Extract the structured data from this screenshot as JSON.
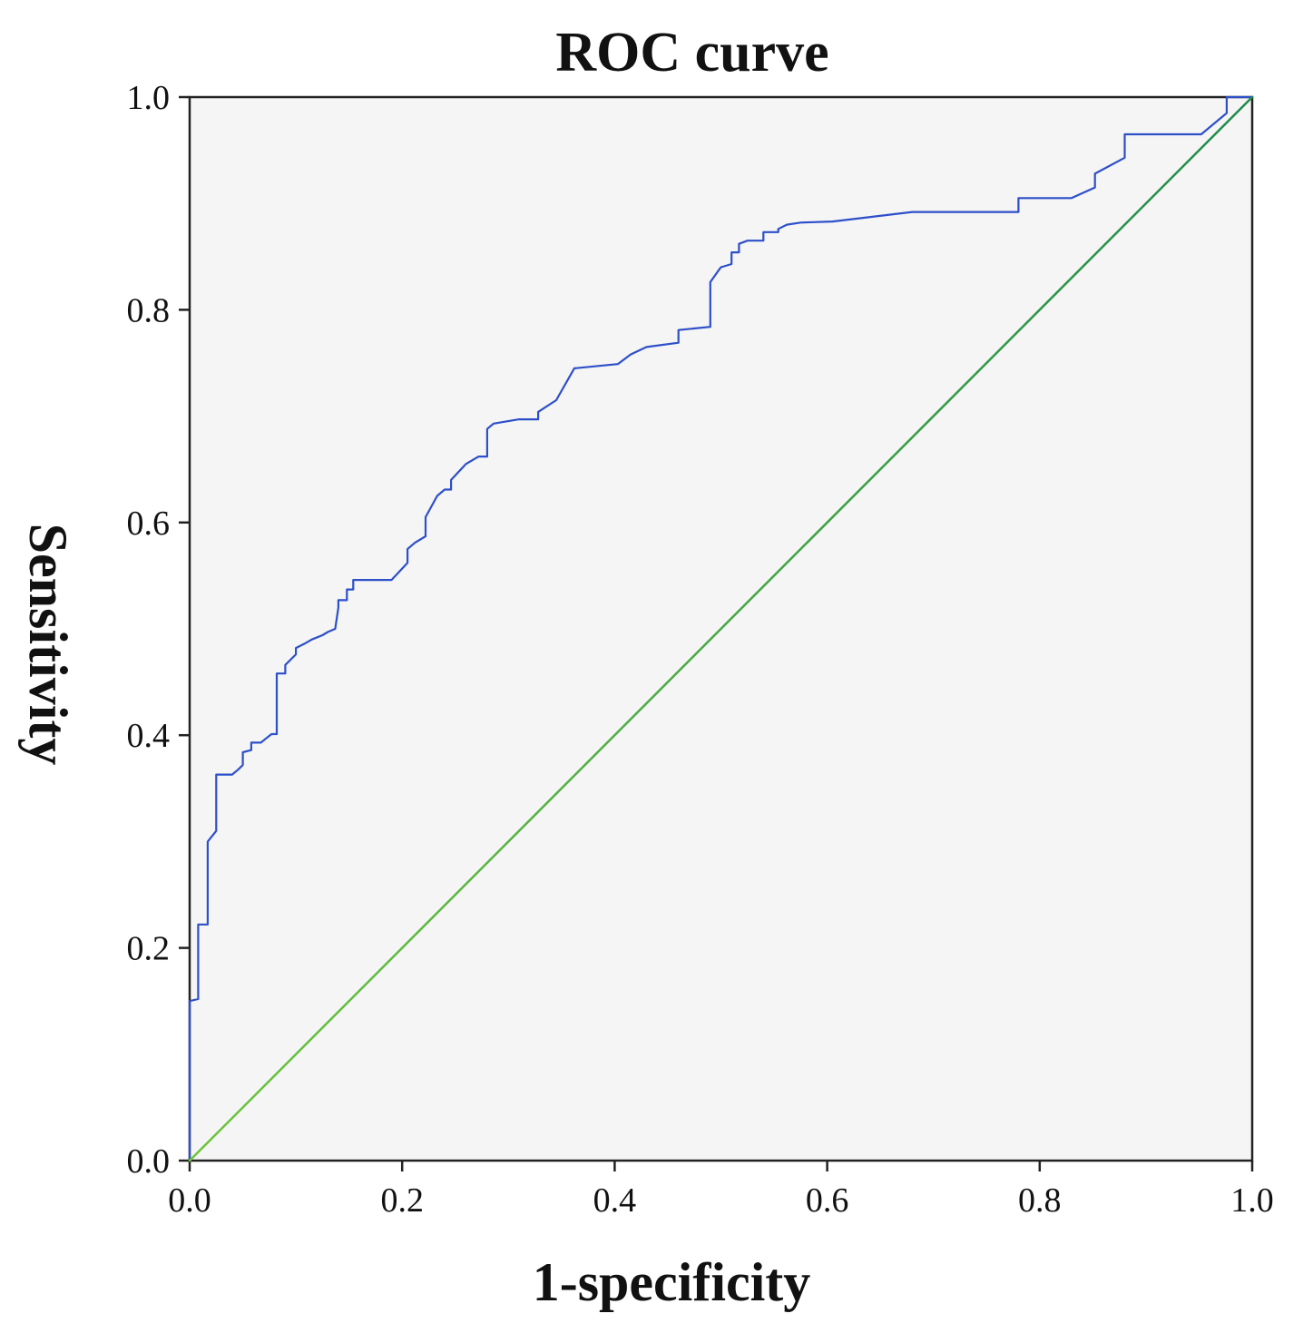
{
  "chart_data": {
    "type": "line",
    "title": "ROC curve",
    "xlabel": "1-specificity",
    "ylabel": "Sensitivity",
    "xlim": [
      0,
      1
    ],
    "ylim": [
      0,
      1
    ],
    "x_ticks": [
      "0.0",
      "0.2",
      "0.4",
      "0.6",
      "0.8",
      "1.0"
    ],
    "y_ticks": [
      "0.0",
      "0.2",
      "0.4",
      "0.6",
      "0.8",
      "1.0"
    ],
    "grid": false,
    "legend": "none",
    "series": [
      {
        "color": "#2d4fc9",
        "x": [
          0.0,
          0.0,
          0.008,
          0.008,
          0.017,
          0.017,
          0.025,
          0.025,
          0.04,
          0.046,
          0.05,
          0.05,
          0.058,
          0.058,
          0.067,
          0.072,
          0.077,
          0.082,
          0.082,
          0.09,
          0.09,
          0.1,
          0.1,
          0.108,
          0.115,
          0.125,
          0.13,
          0.137,
          0.14,
          0.14,
          0.148,
          0.148,
          0.154,
          0.154,
          0.16,
          0.16,
          0.175,
          0.19,
          0.205,
          0.205,
          0.212,
          0.222,
          0.222,
          0.233,
          0.24,
          0.246,
          0.246,
          0.26,
          0.272,
          0.28,
          0.28,
          0.286,
          0.31,
          0.328,
          0.328,
          0.345,
          0.362,
          0.362,
          0.403,
          0.415,
          0.43,
          0.46,
          0.46,
          0.49,
          0.49,
          0.497,
          0.5,
          0.51,
          0.51,
          0.517,
          0.517,
          0.525,
          0.54,
          0.54,
          0.554,
          0.554,
          0.562,
          0.575,
          0.605,
          0.68,
          0.78,
          0.78,
          0.83,
          0.852,
          0.852,
          0.88,
          0.88,
          0.952,
          0.976,
          0.976,
          1.0
        ],
        "y": [
          0.0,
          0.15,
          0.152,
          0.222,
          0.222,
          0.3,
          0.31,
          0.363,
          0.363,
          0.368,
          0.372,
          0.384,
          0.386,
          0.393,
          0.393,
          0.397,
          0.401,
          0.401,
          0.458,
          0.458,
          0.466,
          0.476,
          0.482,
          0.486,
          0.49,
          0.494,
          0.497,
          0.5,
          0.52,
          0.527,
          0.527,
          0.537,
          0.537,
          0.546,
          0.546,
          0.546,
          0.546,
          0.546,
          0.562,
          0.575,
          0.581,
          0.587,
          0.605,
          0.625,
          0.631,
          0.631,
          0.64,
          0.655,
          0.662,
          0.662,
          0.688,
          0.693,
          0.697,
          0.697,
          0.704,
          0.715,
          0.745,
          0.745,
          0.749,
          0.758,
          0.765,
          0.769,
          0.781,
          0.784,
          0.826,
          0.836,
          0.84,
          0.843,
          0.854,
          0.854,
          0.862,
          0.865,
          0.865,
          0.873,
          0.873,
          0.876,
          0.88,
          0.882,
          0.883,
          0.892,
          0.892,
          0.905,
          0.905,
          0.915,
          0.928,
          0.943,
          0.965,
          0.965,
          0.985,
          1.0,
          1.0
        ]
      },
      {
        "color": "#1e9a4a",
        "x": [
          0,
          1
        ],
        "y": [
          0,
          1
        ]
      }
    ]
  }
}
